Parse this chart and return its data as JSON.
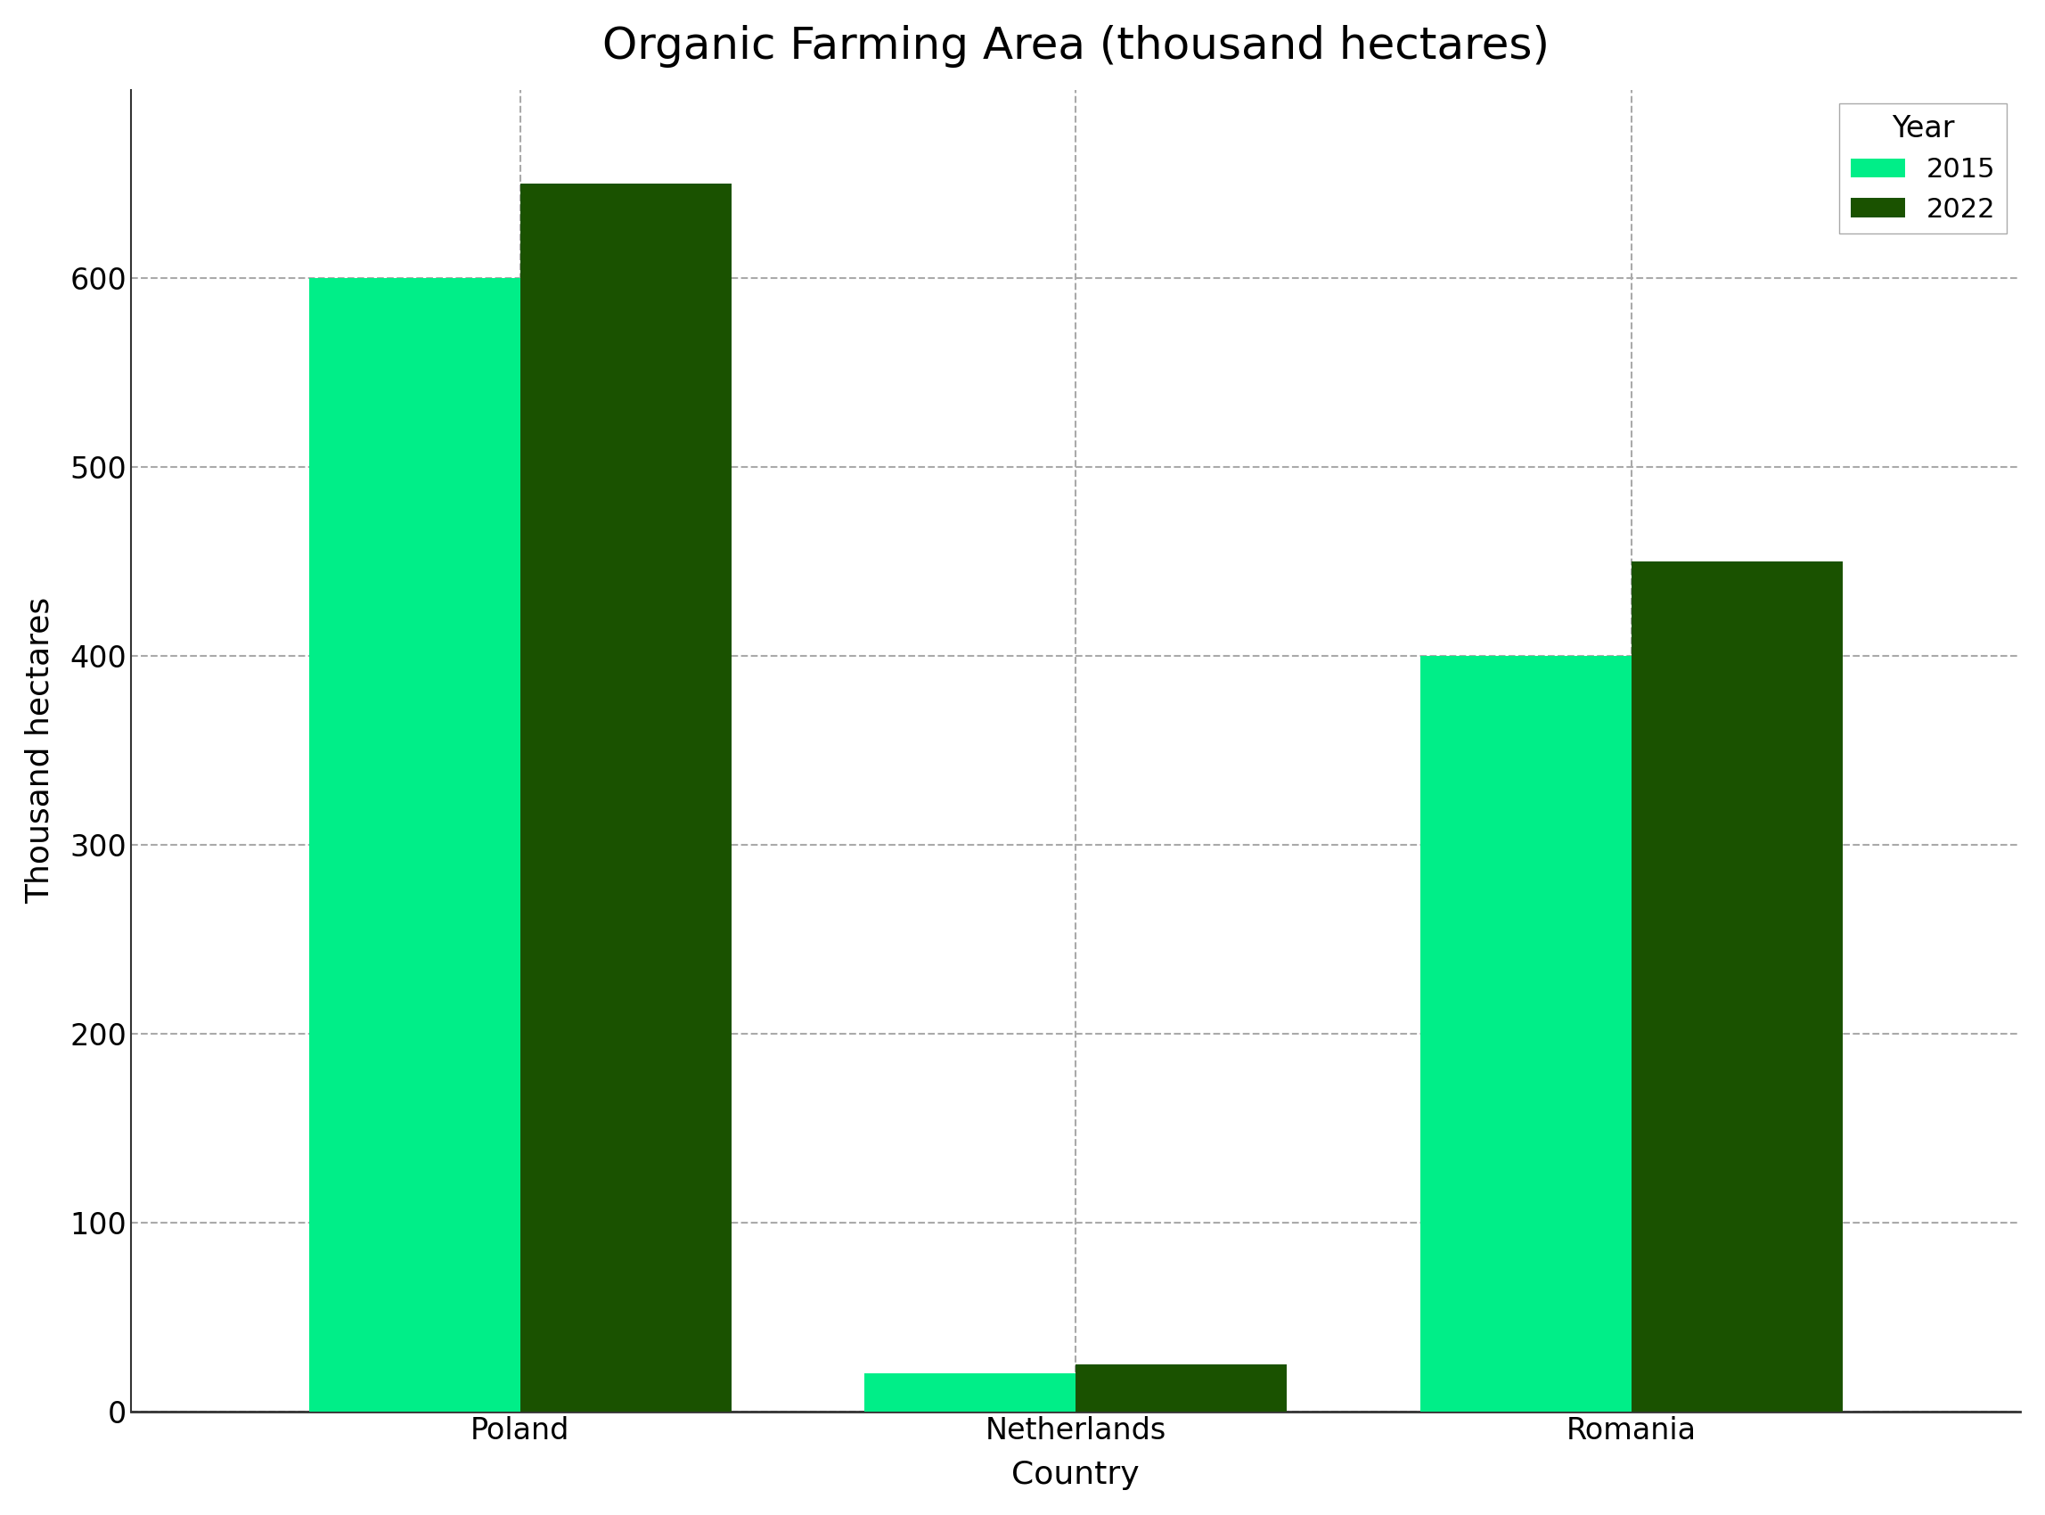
{
  "title": "Organic Farming Area (thousand hectares)",
  "xlabel": "Country",
  "ylabel": "Thousand hectares",
  "categories": [
    "Poland",
    "Netherlands",
    "Romania"
  ],
  "years": [
    "2015",
    "2022"
  ],
  "values_2015": [
    600,
    20,
    400
  ],
  "values_2022": [
    650,
    25,
    450
  ],
  "color_2015": "#00ee88",
  "color_2022": "#1a5200",
  "ylim": [
    0,
    700
  ],
  "yticks": [
    0,
    100,
    200,
    300,
    400,
    500,
    600
  ],
  "bar_width": 0.38,
  "grid_color": "#aaaaaa",
  "grid_linestyle": "--",
  "background_color": "#ffffff",
  "title_fontsize": 36,
  "label_fontsize": 26,
  "tick_fontsize": 24,
  "legend_fontsize": 22,
  "legend_title": "Year"
}
